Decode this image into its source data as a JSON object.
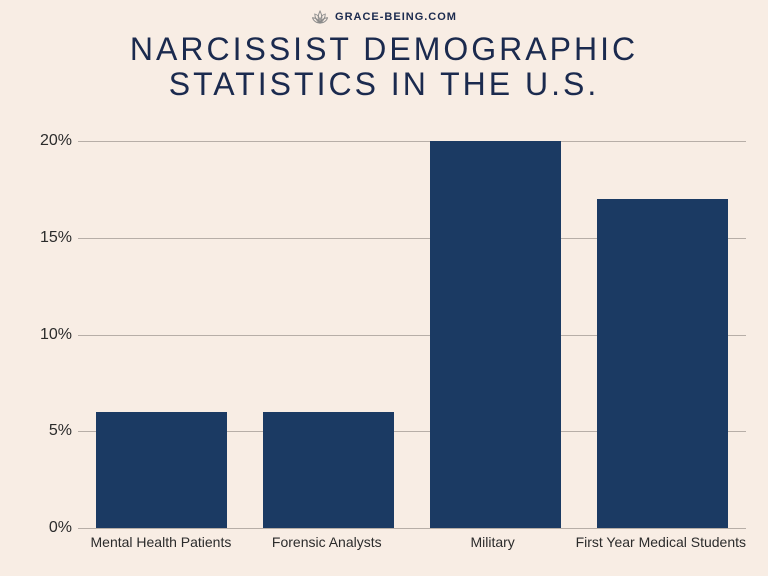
{
  "branding": {
    "icon": "lotus-icon",
    "label": "GRACE-BEING.COM",
    "label_color": "#1b2a4e",
    "label_fontsize": 11
  },
  "title": {
    "line1": "NARCISSIST DEMOGRAPHIC",
    "line2": "STATISTICS IN THE U.S.",
    "color": "#1b2a4e",
    "fontsize": 32,
    "letter_spacing": 3
  },
  "chart": {
    "type": "bar",
    "background_color": "#f8ede4",
    "grid_color": "#b7aea7",
    "axis_label_color": "#2b2b2b",
    "ylim": [
      0,
      21
    ],
    "yticks": [
      0,
      5,
      10,
      15,
      20
    ],
    "ytick_labels": [
      "0%",
      "5%",
      "10%",
      "15%",
      "20%"
    ],
    "ytick_fontsize": 16,
    "xlabel_fontsize": 14,
    "bar_color": "#1b3a63",
    "bar_width_ratio": 0.78,
    "categories": [
      "Mental Health Patients",
      "Forensic Analysts",
      "Military",
      "First Year Medical Students"
    ],
    "values": [
      6,
      6,
      20,
      17
    ]
  }
}
